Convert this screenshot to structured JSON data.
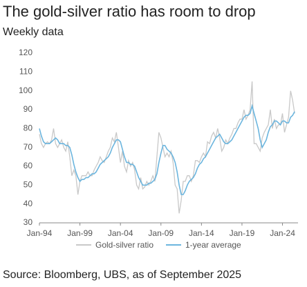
{
  "chart_data": {
    "type": "line",
    "title": "The gold-silver ratio has room to drop",
    "subtitle": "Weekly data",
    "source": "Source: Bloomberg, UBS, as of September 2025",
    "x": [
      "1994-01",
      "1994-04",
      "1994-07",
      "1994-10",
      "1995-01",
      "1995-04",
      "1995-07",
      "1995-10",
      "1996-01",
      "1996-04",
      "1996-07",
      "1996-10",
      "1997-01",
      "1997-04",
      "1997-07",
      "1997-10",
      "1998-01",
      "1998-04",
      "1998-07",
      "1998-10",
      "1999-01",
      "1999-04",
      "1999-07",
      "1999-10",
      "2000-01",
      "2000-04",
      "2000-07",
      "2000-10",
      "2001-01",
      "2001-04",
      "2001-07",
      "2001-10",
      "2002-01",
      "2002-04",
      "2002-07",
      "2002-10",
      "2003-01",
      "2003-04",
      "2003-07",
      "2003-10",
      "2004-01",
      "2004-04",
      "2004-07",
      "2004-10",
      "2005-01",
      "2005-04",
      "2005-07",
      "2005-10",
      "2006-01",
      "2006-04",
      "2006-07",
      "2006-10",
      "2007-01",
      "2007-04",
      "2007-07",
      "2007-10",
      "2008-01",
      "2008-04",
      "2008-07",
      "2008-10",
      "2009-01",
      "2009-04",
      "2009-07",
      "2009-10",
      "2010-01",
      "2010-04",
      "2010-07",
      "2010-10",
      "2011-01",
      "2011-04",
      "2011-07",
      "2011-10",
      "2012-01",
      "2012-04",
      "2012-07",
      "2012-10",
      "2013-01",
      "2013-04",
      "2013-07",
      "2013-10",
      "2014-01",
      "2014-04",
      "2014-07",
      "2014-10",
      "2015-01",
      "2015-04",
      "2015-07",
      "2015-10",
      "2016-01",
      "2016-04",
      "2016-07",
      "2016-10",
      "2017-01",
      "2017-04",
      "2017-07",
      "2017-10",
      "2018-01",
      "2018-04",
      "2018-07",
      "2018-10",
      "2019-01",
      "2019-04",
      "2019-07",
      "2019-10",
      "2020-01",
      "2020-04",
      "2020-07",
      "2020-10",
      "2021-01",
      "2021-04",
      "2021-07",
      "2021-10",
      "2022-01",
      "2022-04",
      "2022-07",
      "2022-10",
      "2023-01",
      "2023-04",
      "2023-07",
      "2023-10",
      "2024-01",
      "2024-04",
      "2024-07",
      "2024-10",
      "2025-01",
      "2025-04",
      "2025-07"
    ],
    "series": [
      {
        "name": "Gold-silver ratio",
        "color": "#c8c8c8",
        "values": [
          77,
          72,
          70,
          72,
          73,
          72,
          74,
          80,
          72,
          70,
          72,
          74,
          70,
          68,
          73,
          65,
          55,
          58,
          55,
          45,
          52,
          55,
          55,
          55,
          57,
          55,
          55,
          58,
          60,
          62,
          65,
          63,
          62,
          65,
          68,
          70,
          75,
          73,
          78,
          70,
          62,
          68,
          60,
          57,
          63,
          60,
          62,
          58,
          50,
          48,
          54,
          48,
          49,
          52,
          50,
          52,
          55,
          52,
          65,
          78,
          75,
          70,
          65,
          67,
          65,
          68,
          62,
          50,
          48,
          35,
          42,
          52,
          52,
          55,
          55,
          52,
          55,
          63,
          63,
          62,
          65,
          67,
          65,
          73,
          72,
          76,
          78,
          75,
          80,
          75,
          68,
          70,
          74,
          72,
          75,
          77,
          80,
          80,
          83,
          85,
          85,
          90,
          85,
          87,
          90,
          105,
          72,
          72,
          70,
          68,
          75,
          78,
          80,
          82,
          90,
          80,
          85,
          80,
          82,
          82,
          88,
          78,
          82,
          86,
          100,
          95,
          88
        ]
      },
      {
        "name": "1-year average",
        "color": "#6bb5de",
        "values": [
          80,
          76,
          73,
          72,
          72,
          72,
          73,
          74,
          75,
          74,
          72,
          72,
          72,
          71,
          71,
          70,
          66,
          61,
          57,
          54,
          52,
          53,
          53,
          54,
          54,
          55,
          56,
          56,
          57,
          59,
          61,
          62,
          63,
          64,
          65,
          67,
          70,
          72,
          74,
          74,
          73,
          69,
          65,
          62,
          62,
          61,
          61,
          60,
          57,
          54,
          52,
          50,
          50,
          50,
          51,
          51,
          52,
          53,
          56,
          62,
          67,
          71,
          71,
          69,
          68,
          67,
          65,
          62,
          57,
          50,
          45,
          45,
          47,
          50,
          52,
          53,
          54,
          56,
          59,
          61,
          62,
          64,
          65,
          67,
          69,
          71,
          73,
          75,
          76,
          77,
          75,
          73,
          72,
          72,
          73,
          74,
          76,
          78,
          80,
          82,
          84,
          86,
          87,
          87,
          88,
          92,
          88,
          84,
          80,
          74,
          70,
          72,
          74,
          78,
          81,
          82,
          84,
          84,
          83,
          82,
          84,
          84,
          83,
          83,
          86,
          87,
          89
        ]
      }
    ],
    "xlim": [
      "1994-01",
      "2025-12"
    ],
    "xticks": [
      {
        "value": "1994-01",
        "label": "Jan-94"
      },
      {
        "value": "1999-01",
        "label": "Jan-99"
      },
      {
        "value": "2004-01",
        "label": "Jan-04"
      },
      {
        "value": "2009-01",
        "label": "Jan-09"
      },
      {
        "value": "2014-01",
        "label": "Jan-14"
      },
      {
        "value": "2019-01",
        "label": "Jan-19"
      },
      {
        "value": "2024-01",
        "label": "Jan-24"
      }
    ],
    "ylim": [
      30,
      120
    ],
    "yticks": [
      30,
      40,
      50,
      60,
      70,
      80,
      90,
      100,
      110,
      120
    ],
    "grid": false
  }
}
